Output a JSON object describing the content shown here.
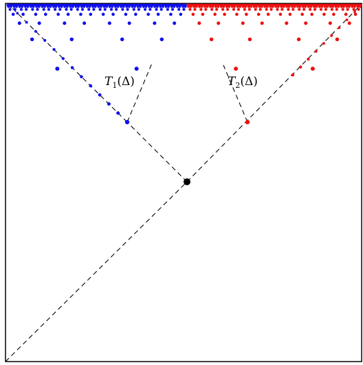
{
  "labels": {
    "t1": {
      "name": "T",
      "sub": "1",
      "arg": "(Δ)"
    },
    "t2": {
      "name": "T",
      "sub": "2",
      "arg": "(Δ)"
    }
  },
  "colors": {
    "left_tree": "#1010ee",
    "right_tree": "#ee1010",
    "root": "#000000",
    "lines": "#000000",
    "frame": "#000000"
  }
}
